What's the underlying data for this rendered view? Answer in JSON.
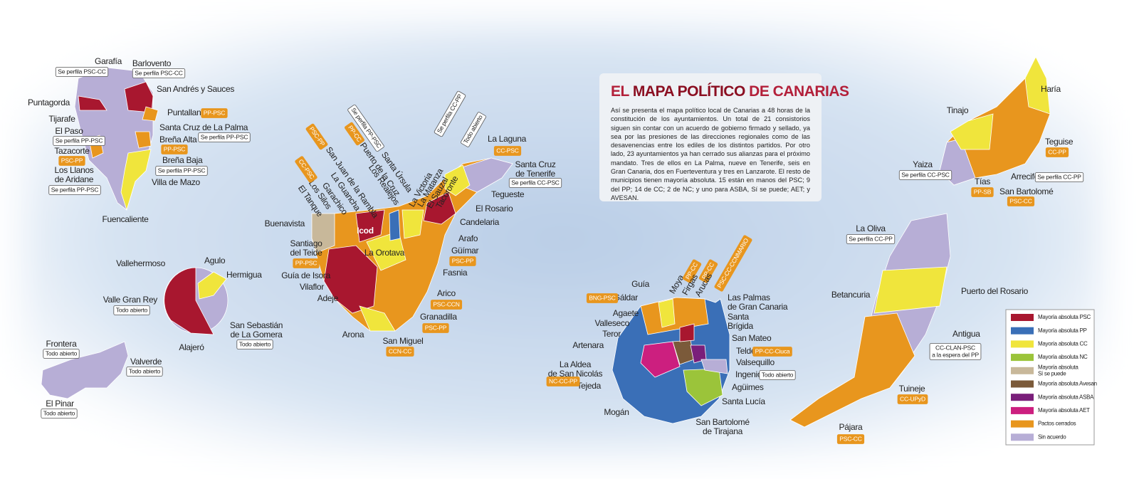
{
  "title": {
    "pre": "EL",
    "highlight": "MAPA POLÍTICO",
    "post": "DE CANARIAS"
  },
  "intro": "Así se presenta el mapa político local de Canarias a 48 horas de la constitución de los ayuntamientos. Un total de 21 consistorios siguen sin contar con un acuerdo de gobierno firmado y sellado, ya sea por las presiones de las direcciones regionales como de las desavenencias entre los ediles de los distintos partidos. Por otro lado, 23 ayuntamientos ya han cerrado sus alianzas para el próximo mandato. Tres de ellos en La Palma, nueve en Tenerife, seis en Gran Canaria, dos en Fuerteventura y tres en Lanzarote. El resto de municipios tienen mayoría absoluta. 15 están en manos del PSC; 9 del PP; 14 de CC; 2 de NC; y uno para ASBA, Sí se puede; AET; y AVESAN.",
  "legend": [
    {
      "label": [
        "Mayoría absoluta PSC"
      ],
      "color": "#a8172f"
    },
    {
      "label": [
        "Mayoría absoluta PP"
      ],
      "color": "#3a6fb7"
    },
    {
      "label": [
        "Mayoría absoluta CC"
      ],
      "color": "#f0e53c"
    },
    {
      "label": [
        "Mayoría absoluta NC"
      ],
      "color": "#9bc43a"
    },
    {
      "label": [
        "Mayoría absoluta",
        "Sí se puede"
      ],
      "color": "#c8b89a"
    },
    {
      "label": [
        "Mayoría absoluta Avesan"
      ],
      "color": "#7b5a3a"
    },
    {
      "label": [
        "Mayoría absoluta ASBA"
      ],
      "color": "#7a1f7a"
    },
    {
      "label": [
        "Mayoría absoluta AET"
      ],
      "color": "#cc1f7f"
    },
    {
      "label": [
        "Pactos cerrados"
      ],
      "color": "#e8961e"
    },
    {
      "label": [
        "Sin acuerdo"
      ],
      "color": "#b7aed6"
    }
  ],
  "municipalities": [
    {
      "name": [
        "Garafía"
      ],
      "tag": [
        "Se perfila PSC-CC"
      ]
    },
    {
      "name": [
        "Barlovento"
      ],
      "tag": [
        "Se perfila PSC-CC"
      ]
    },
    {
      "name": [
        "San Andrés y Sauces"
      ]
    },
    {
      "name": [
        "Puntallana"
      ],
      "tag": [
        "PP-PSC"
      ]
    },
    {
      "name": [
        "Santa Cruz de La Palma"
      ],
      "tag": [
        "Se perfila PP-PSC"
      ]
    },
    {
      "name": [
        "Breña Alta"
      ],
      "tag": [
        "PP-PSC"
      ]
    },
    {
      "name": [
        "Breña Baja"
      ],
      "tag": [
        "Se perfila PP-PSC"
      ]
    },
    {
      "name": [
        "Villa de Mazo"
      ]
    },
    {
      "name": [
        "Fuencaliente"
      ]
    },
    {
      "name": [
        "Los Llanos",
        "de Aridane"
      ],
      "tag": [
        "Se perfila PP-PSC"
      ]
    },
    {
      "name": [
        "Tazacorte"
      ],
      "tag": [
        "PSC-PP"
      ]
    },
    {
      "name": [
        "El Paso"
      ],
      "tag": [
        "Se perfila PP-PSC"
      ]
    },
    {
      "name": [
        "Tijarafe"
      ]
    },
    {
      "name": [
        "Puntagorda"
      ]
    },
    {
      "name": [
        "Vallehermoso"
      ]
    },
    {
      "name": [
        "Agulo"
      ]
    },
    {
      "name": [
        "Hermigua"
      ]
    },
    {
      "name": [
        "Valle Gran Rey"
      ],
      "tag": [
        "Todo abierto"
      ]
    },
    {
      "name": [
        "San Sebastián",
        "de La Gomera"
      ],
      "tag": [
        "Todo abierto"
      ]
    },
    {
      "name": [
        "Alajeró"
      ]
    },
    {
      "name": [
        "Frontera"
      ],
      "tag": [
        "Todo abierto"
      ]
    },
    {
      "name": [
        "Valverde"
      ],
      "tag": [
        "Todo abierto"
      ]
    },
    {
      "name": [
        "El Pinar"
      ],
      "tag": [
        "Todo abierto"
      ]
    },
    {
      "name": [
        "La Laguna"
      ],
      "tag": [
        "CC-PSC"
      ]
    },
    {
      "name": [
        "Santa Cruz",
        "de Tenerife"
      ],
      "tag": [
        "Se perfila CC-PSC"
      ]
    },
    {
      "name": [
        "Tegueste"
      ]
    },
    {
      "name": [
        "El Rosario"
      ]
    },
    {
      "name": [
        "Candelaria"
      ]
    },
    {
      "name": [
        "Arafo"
      ]
    },
    {
      "name": [
        "Güímar"
      ],
      "tag": [
        "PSC-PP"
      ]
    },
    {
      "name": [
        "Fasnia"
      ]
    },
    {
      "name": [
        "Arico"
      ],
      "tag": [
        "PSC-CCN"
      ]
    },
    {
      "name": [
        "Granadilla"
      ],
      "tag": [
        "PSC-PP"
      ]
    },
    {
      "name": [
        "San Miguel"
      ],
      "tag": [
        "CCN-CC"
      ]
    },
    {
      "name": [
        "Arona"
      ]
    },
    {
      "name": [
        "Adeje"
      ]
    },
    {
      "name": [
        "Vilaflor"
      ]
    },
    {
      "name": [
        "Guía de Isora"
      ]
    },
    {
      "name": [
        "Santiago",
        "del Teide"
      ],
      "tag": [
        "PP-PSC"
      ]
    },
    {
      "name": [
        "Buenavista"
      ]
    },
    {
      "name": [
        "Icod"
      ]
    },
    {
      "name": [
        "La Orotava"
      ]
    },
    {
      "name": [
        "El Tanque"
      ]
    },
    {
      "name": [
        "Los Silos"
      ],
      "tag": [
        "CC-PSC"
      ]
    },
    {
      "name": [
        "Garachico"
      ]
    },
    {
      "name": [
        "La Guancha"
      ]
    },
    {
      "name": [
        "San Juan de la Rambla"
      ],
      "tag": [
        "PSC-PP"
      ]
    },
    {
      "name": [
        "Puerto de la Cruz"
      ],
      "tag": [
        "PP-CC"
      ]
    },
    {
      "name": [
        "Los Realejos"
      ]
    },
    {
      "name": [
        "Santa Úrsula"
      ],
      "tag": [
        "Se perfila PP-PSC"
      ]
    },
    {
      "name": [
        "La Victoria"
      ],
      "tag": [
        "Se perfila CC-PP"
      ]
    },
    {
      "name": [
        "La Matanza"
      ]
    },
    {
      "name": [
        "El Sauzal"
      ]
    },
    {
      "name": [
        "Tacoronte"
      ],
      "tag": [
        "Todo abierto"
      ]
    },
    {
      "name": [
        "Guía"
      ]
    },
    {
      "name": [
        "Gáldar"
      ],
      "tag": [
        "BNG-PSC"
      ]
    },
    {
      "name": [
        "Moya"
      ],
      "tag": [
        "PP-CC"
      ]
    },
    {
      "name": [
        "Firgas"
      ],
      "tag": [
        "PP-CC"
      ]
    },
    {
      "name": [
        "Arucas"
      ],
      "tag": [
        "PSC-CC-CCNMARIO"
      ]
    },
    {
      "name": [
        "Las Palmas",
        "de Gran Canaria"
      ]
    },
    {
      "name": [
        "Santa",
        "Brígida"
      ]
    },
    {
      "name": [
        "San Mateo"
      ]
    },
    {
      "name": [
        "Telde"
      ],
      "tag": [
        "PP-CC-Ciuca"
      ]
    },
    {
      "name": [
        "Valsequillo"
      ]
    },
    {
      "name": [
        "Ingenio"
      ],
      "tag": [
        "Todo abierto"
      ]
    },
    {
      "name": [
        "Agüimes"
      ]
    },
    {
      "name": [
        "Santa Lucía"
      ]
    },
    {
      "name": [
        "San Bartolomé",
        "de Tirajana"
      ]
    },
    {
      "name": [
        "Mogán"
      ]
    },
    {
      "name": [
        "Tejeda"
      ]
    },
    {
      "name": [
        "La Aldea",
        "de San Nicolás"
      ],
      "tag": [
        "NC-CC-PP"
      ]
    },
    {
      "name": [
        "Artenara"
      ]
    },
    {
      "name": [
        "Teror"
      ]
    },
    {
      "name": [
        "Valleseco"
      ]
    },
    {
      "name": [
        "Agaete"
      ]
    },
    {
      "name": [
        "La Oliva"
      ],
      "tag": [
        "Se perfila CC-PP"
      ]
    },
    {
      "name": [
        "Puerto del Rosario"
      ]
    },
    {
      "name": [
        "Betancuria"
      ]
    },
    {
      "name": [
        "Antigua"
      ],
      "tag": [
        "CC-CLAN-PSC",
        "a la espera del PP"
      ]
    },
    {
      "name": [
        "Tuineje"
      ],
      "tag": [
        "CC-UPyD"
      ]
    },
    {
      "name": [
        "Pájara"
      ],
      "tag": [
        "PSC-CC"
      ]
    },
    {
      "name": [
        "Haría"
      ]
    },
    {
      "name": [
        "Tinajo"
      ]
    },
    {
      "name": [
        "Teguise"
      ],
      "tag": [
        "CC-PP"
      ]
    },
    {
      "name": [
        "Yaiza"
      ],
      "tag": [
        "Se perfila CC-PSC"
      ]
    },
    {
      "name": [
        "Tías"
      ],
      "tag": [
        "PP-SB"
      ]
    },
    {
      "name": [
        "Arrecife"
      ],
      "tag": [
        "Se perfila CC-PP"
      ]
    },
    {
      "name": [
        "San Bartolomé"
      ],
      "tag": [
        "PSC-CC"
      ]
    }
  ]
}
